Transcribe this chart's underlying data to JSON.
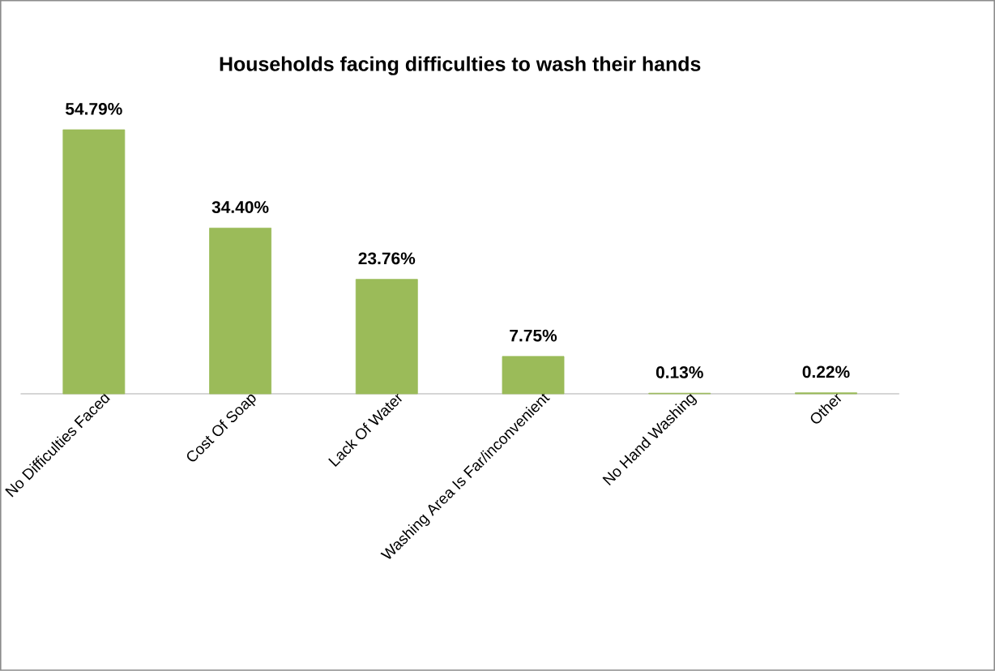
{
  "chart_data": {
    "type": "bar",
    "title": "Households facing difficulties to wash their hands",
    "categories": [
      "No Difficulties Faced",
      "Cost Of Soap",
      "Lack Of Water",
      "Washing Area Is Far/inconvenient",
      "No Hand Washing",
      "Other"
    ],
    "values": [
      54.79,
      34.4,
      23.76,
      7.75,
      0.13,
      0.22
    ],
    "value_labels": [
      "54.79%",
      "34.40%",
      "23.76%",
      "7.75%",
      "0.13%",
      "0.22%"
    ],
    "color": "#9bbb59"
  }
}
